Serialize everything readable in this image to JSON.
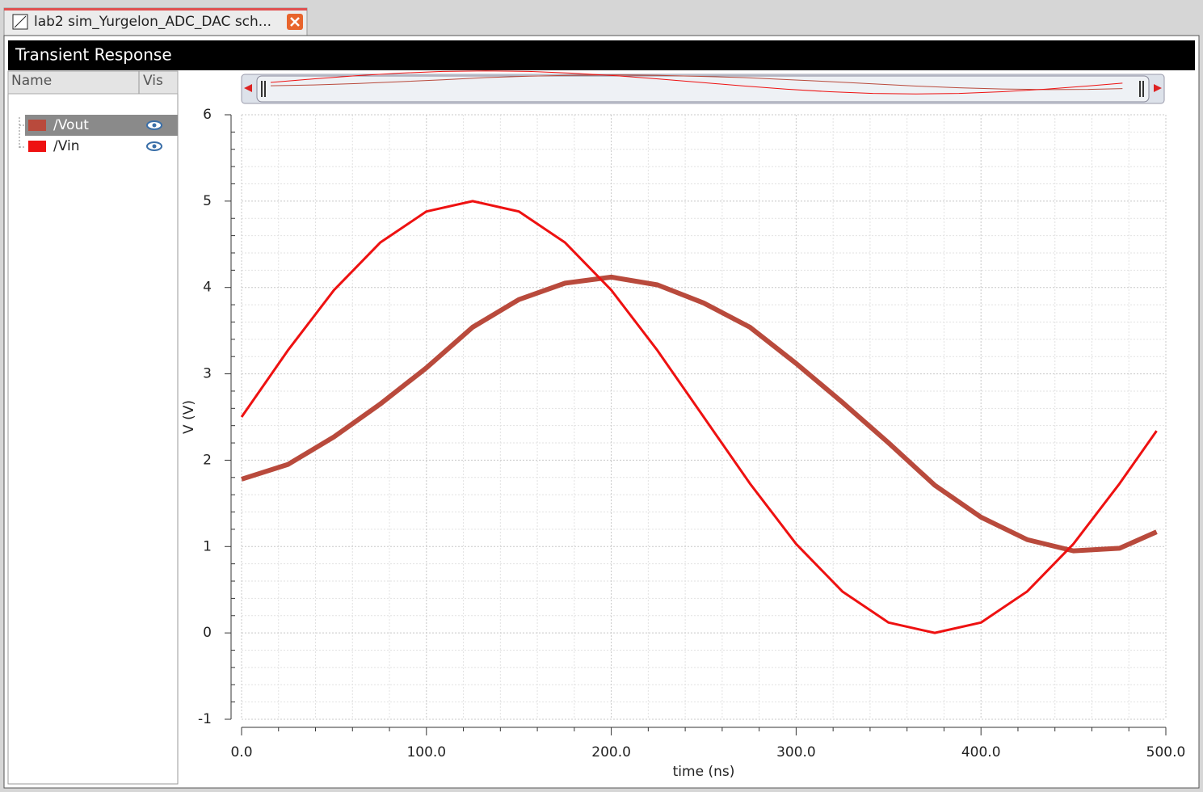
{
  "ui": {
    "tab_title": "lab2 sim_Yurgelon_ADC_DAC sch...",
    "window_title": "Transient Response",
    "columns": [
      "Name",
      "Vis"
    ]
  },
  "chart_data": {
    "type": "line",
    "x_label": "time (ns)",
    "y_label": "V (V)",
    "x": [
      0,
      25,
      50,
      75,
      100,
      125,
      150,
      175,
      200,
      225,
      250,
      275,
      300,
      325,
      350,
      375,
      400,
      425,
      450,
      475,
      495
    ],
    "series": [
      {
        "name": "/Vout",
        "color": "#b94a3c",
        "values": [
          1.78,
          1.95,
          2.27,
          2.65,
          3.07,
          3.54,
          3.86,
          4.05,
          4.12,
          4.03,
          3.82,
          3.54,
          3.12,
          2.67,
          2.2,
          1.71,
          1.34,
          1.08,
          0.95,
          0.98,
          1.17
        ]
      },
      {
        "name": "/Vin",
        "color": "#ee1111",
        "values": [
          2.5,
          3.27,
          3.97,
          4.52,
          4.88,
          5,
          4.88,
          4.52,
          3.97,
          3.27,
          2.5,
          1.73,
          1.03,
          0.48,
          0.12,
          0,
          0.12,
          0.48,
          1.03,
          1.73,
          2.34
        ]
      }
    ],
    "xlim": [
      0,
      500
    ],
    "ylim": [
      -1,
      6
    ],
    "xticks": [
      {
        "value": 0,
        "label": "0.0"
      },
      {
        "value": 100,
        "label": "100.0"
      },
      {
        "value": 200,
        "label": "200.0"
      },
      {
        "value": 300,
        "label": "300.0"
      },
      {
        "value": 400,
        "label": "400.0"
      },
      {
        "value": 500,
        "label": "500.0"
      }
    ],
    "yticks": [
      -1,
      0,
      1,
      2,
      3,
      4,
      5,
      6
    ],
    "grid": true
  }
}
